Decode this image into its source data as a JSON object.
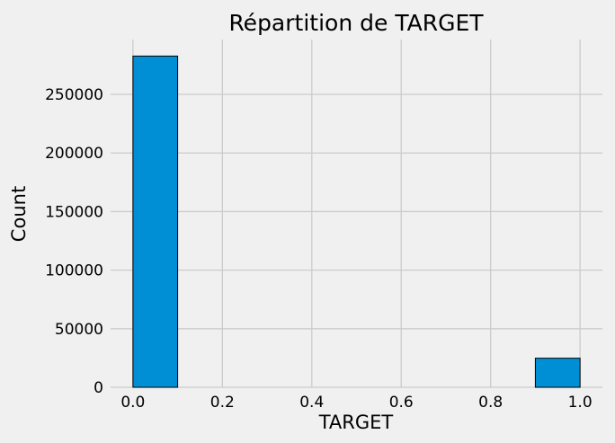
{
  "chart_data": {
    "type": "bar",
    "title": "Répartition de TARGET",
    "xlabel": "TARGET",
    "ylabel": "Count",
    "bins": [
      {
        "x0": 0.0,
        "x1": 0.1,
        "count": 282686
      },
      {
        "x0": 0.9,
        "x1": 1.0,
        "count": 24825
      }
    ],
    "xlim": [
      -0.05,
      1.05
    ],
    "ylim": [
      0,
      296800
    ],
    "x_ticks": [
      "0.0",
      "0.2",
      "0.4",
      "0.6",
      "0.8",
      "1.0"
    ],
    "y_ticks": [
      "0",
      "50000",
      "100000",
      "150000",
      "200000",
      "250000"
    ],
    "grid": true,
    "colors": {
      "background": "#f0f0f0",
      "bar_fill": "#008fd5",
      "bar_edge": "#000000",
      "grid": "#cbcbcb"
    }
  }
}
